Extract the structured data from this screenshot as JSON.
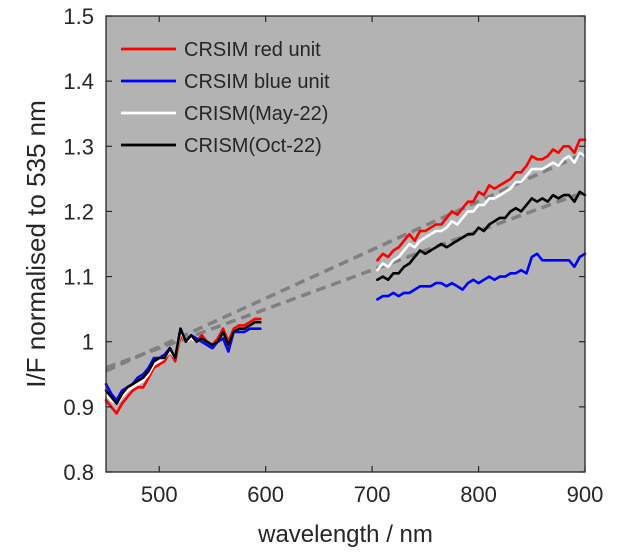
{
  "chart_data": {
    "type": "line",
    "xlabel": "wavelength / nm",
    "ylabel": "I/F normalised to 535 nm",
    "xlim": [
      450,
      900
    ],
    "ylim": [
      0.8,
      1.5
    ],
    "xticks": [
      500,
      600,
      700,
      800,
      900
    ],
    "yticks": [
      0.8,
      0.9,
      1,
      1.1,
      1.2,
      1.3,
      1.4,
      1.5
    ],
    "ytick_labels": [
      "0.8",
      "0.9",
      "1",
      "1.1",
      "1.2",
      "1.3",
      "1.4",
      "1.5"
    ],
    "grid": false,
    "background": "#b3b3b3",
    "legend_position": "top-left",
    "series": [
      {
        "name": "CRSIM red unit",
        "color": "#ff0000",
        "segments": [
          {
            "x": [
              450,
              455,
              460,
              465,
              470,
              475,
              480,
              485,
              490,
              495,
              500,
              505,
              510,
              515,
              520,
              525,
              530,
              535,
              540,
              545,
              550,
              555,
              560,
              565,
              570,
              575,
              580,
              585,
              590,
              595
            ],
            "y": [
              0.91,
              0.9,
              0.89,
              0.905,
              0.915,
              0.925,
              0.93,
              0.93,
              0.945,
              0.96,
              0.965,
              0.97,
              0.985,
              0.97,
              1.01,
              1.0,
              1.005,
              1.0,
              1.01,
              1.0,
              0.995,
              1.005,
              1.02,
              1.0,
              1.02,
              1.025,
              1.025,
              1.03,
              1.035,
              1.035
            ]
          },
          {
            "x": [
              705,
              710,
              715,
              720,
              725,
              730,
              735,
              740,
              745,
              750,
              755,
              760,
              765,
              770,
              775,
              780,
              785,
              790,
              795,
              800,
              805,
              810,
              815,
              820,
              825,
              830,
              835,
              840,
              845,
              850,
              855,
              860,
              865,
              870,
              875,
              880,
              885,
              890,
              895,
              900
            ],
            "y": [
              1.125,
              1.135,
              1.13,
              1.14,
              1.145,
              1.155,
              1.165,
              1.155,
              1.17,
              1.17,
              1.175,
              1.18,
              1.18,
              1.19,
              1.2,
              1.195,
              1.205,
              1.215,
              1.215,
              1.23,
              1.225,
              1.24,
              1.235,
              1.24,
              1.245,
              1.25,
              1.26,
              1.26,
              1.27,
              1.285,
              1.28,
              1.28,
              1.285,
              1.295,
              1.29,
              1.3,
              1.3,
              1.29,
              1.31,
              1.31
            ]
          }
        ]
      },
      {
        "name": "CRSIM blue unit",
        "color": "#0000ff",
        "segments": [
          {
            "x": [
              450,
              455,
              460,
              465,
              470,
              475,
              480,
              485,
              490,
              495,
              500,
              505,
              510,
              515,
              520,
              525,
              530,
              535,
              540,
              545,
              550,
              555,
              560,
              565,
              570,
              575,
              580,
              585,
              590,
              595
            ],
            "y": [
              0.935,
              0.92,
              0.91,
              0.925,
              0.93,
              0.935,
              0.945,
              0.95,
              0.96,
              0.975,
              0.975,
              0.98,
              0.99,
              0.975,
              1.02,
              1.0,
              1.01,
              1.005,
              1.0,
              0.995,
              0.99,
              1.0,
              1.005,
              0.985,
              1.015,
              1.015,
              1.015,
              1.02,
              1.02,
              1.02
            ]
          },
          {
            "x": [
              705,
              710,
              715,
              720,
              725,
              730,
              735,
              740,
              745,
              750,
              755,
              760,
              765,
              770,
              775,
              780,
              785,
              790,
              795,
              800,
              805,
              810,
              815,
              820,
              825,
              830,
              835,
              840,
              845,
              850,
              855,
              860,
              865,
              870,
              875,
              880,
              885,
              890,
              895,
              900
            ],
            "y": [
              1.065,
              1.07,
              1.07,
              1.075,
              1.07,
              1.075,
              1.075,
              1.08,
              1.085,
              1.085,
              1.085,
              1.09,
              1.09,
              1.085,
              1.09,
              1.085,
              1.08,
              1.09,
              1.095,
              1.09,
              1.095,
              1.1,
              1.095,
              1.1,
              1.1,
              1.105,
              1.105,
              1.11,
              1.105,
              1.13,
              1.135,
              1.125,
              1.125,
              1.125,
              1.125,
              1.125,
              1.125,
              1.115,
              1.13,
              1.135
            ]
          }
        ]
      },
      {
        "name": "CRISM(May-22)",
        "color": "#ffffff",
        "segments": [
          {
            "x": [
              450,
              455,
              460,
              465,
              470,
              475,
              480,
              485,
              490,
              495,
              500,
              505,
              510,
              515,
              520,
              525,
              530,
              535,
              540,
              545,
              550,
              555,
              560,
              565,
              570,
              575,
              580,
              585,
              590,
              595
            ],
            "y": [
              0.92,
              0.91,
              0.905,
              0.915,
              0.925,
              0.93,
              0.935,
              0.94,
              0.95,
              0.965,
              0.97,
              0.975,
              0.985,
              0.975,
              1.015,
              1.0,
              1.005,
              1.0,
              1.005,
              1.0,
              0.995,
              1.0,
              1.015,
              0.995,
              1.015,
              1.02,
              1.02,
              1.025,
              1.03,
              1.03
            ]
          },
          {
            "x": [
              705,
              710,
              715,
              720,
              725,
              730,
              735,
              740,
              745,
              750,
              755,
              760,
              765,
              770,
              775,
              780,
              785,
              790,
              795,
              800,
              805,
              810,
              815,
              820,
              825,
              830,
              835,
              840,
              845,
              850,
              855,
              860,
              865,
              870,
              875,
              880,
              885,
              890,
              895,
              900
            ],
            "y": [
              1.11,
              1.12,
              1.115,
              1.125,
              1.13,
              1.14,
              1.15,
              1.145,
              1.155,
              1.16,
              1.165,
              1.17,
              1.17,
              1.175,
              1.185,
              1.18,
              1.19,
              1.2,
              1.2,
              1.21,
              1.21,
              1.22,
              1.22,
              1.225,
              1.23,
              1.235,
              1.245,
              1.245,
              1.255,
              1.265,
              1.265,
              1.265,
              1.27,
              1.275,
              1.27,
              1.28,
              1.285,
              1.275,
              1.29,
              1.285
            ]
          }
        ]
      },
      {
        "name": "CRISM(Oct-22)",
        "color": "#000000",
        "segments": [
          {
            "x": [
              450,
              455,
              460,
              465,
              470,
              475,
              480,
              485,
              490,
              495,
              500,
              505,
              510,
              515,
              520,
              525,
              530,
              535,
              540,
              545,
              550,
              555,
              560,
              565,
              570,
              575,
              580,
              585,
              590,
              595
            ],
            "y": [
              0.925,
              0.915,
              0.905,
              0.92,
              0.93,
              0.935,
              0.94,
              0.945,
              0.955,
              0.97,
              0.975,
              0.975,
              0.99,
              0.975,
              1.02,
              1.0,
              1.01,
              1.0,
              1.005,
              1.0,
              0.995,
              1.0,
              1.015,
              0.995,
              1.015,
              1.02,
              1.02,
              1.025,
              1.03,
              1.03
            ]
          },
          {
            "x": [
              705,
              710,
              715,
              720,
              725,
              730,
              735,
              740,
              745,
              750,
              755,
              760,
              765,
              770,
              775,
              780,
              785,
              790,
              795,
              800,
              805,
              810,
              815,
              820,
              825,
              830,
              835,
              840,
              845,
              850,
              855,
              860,
              865,
              870,
              875,
              880,
              885,
              890,
              895,
              900
            ],
            "y": [
              1.095,
              1.1,
              1.095,
              1.105,
              1.105,
              1.115,
              1.12,
              1.13,
              1.14,
              1.135,
              1.14,
              1.145,
              1.15,
              1.145,
              1.15,
              1.155,
              1.16,
              1.165,
              1.165,
              1.175,
              1.17,
              1.18,
              1.185,
              1.19,
              1.19,
              1.2,
              1.205,
              1.2,
              1.21,
              1.22,
              1.215,
              1.22,
              1.215,
              1.225,
              1.22,
              1.225,
              1.225,
              1.215,
              1.23,
              1.225
            ]
          }
        ]
      }
    ],
    "trend_lines": [
      {
        "color": "#808080",
        "style": "dashed",
        "x": [
          450,
          900
        ],
        "y": [
          0.955,
          1.29
        ]
      },
      {
        "color": "#808080",
        "style": "dashed",
        "x": [
          450,
          900
        ],
        "y": [
          0.96,
          1.23
        ]
      }
    ]
  }
}
